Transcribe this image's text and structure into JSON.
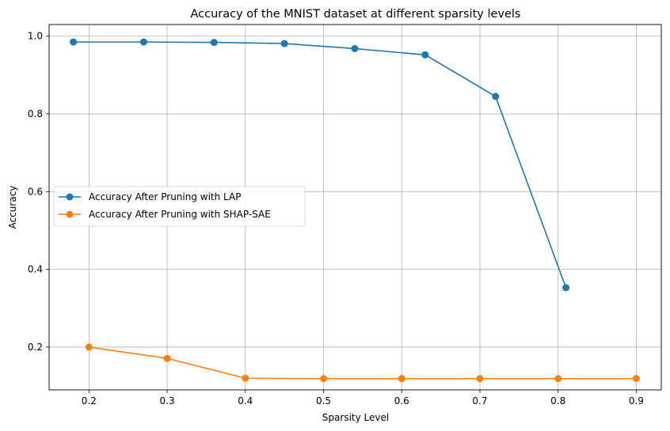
{
  "chart_data": {
    "type": "line",
    "title": "Accuracy of the MNIST dataset at different sparsity levels",
    "xlabel": "Sparsity Level",
    "ylabel": "Accuracy",
    "xlim": [
      0.149,
      0.932
    ],
    "ylim": [
      0.09,
      1.03
    ],
    "xticks": [
      "0.2",
      "0.3",
      "0.4",
      "0.5",
      "0.6",
      "0.7",
      "0.8",
      "0.9"
    ],
    "yticks": [
      "0.2",
      "0.4",
      "0.6",
      "0.8",
      "1.0"
    ],
    "grid": true,
    "legend_position": "center-left",
    "series": [
      {
        "name": "Accuracy After Pruning with LAP",
        "color": "#1f77b4",
        "x": [
          0.18,
          0.27,
          0.36,
          0.45,
          0.54,
          0.63,
          0.72,
          0.81
        ],
        "y": [
          0.985,
          0.985,
          0.984,
          0.981,
          0.968,
          0.952,
          0.845,
          0.353
        ]
      },
      {
        "name": "Accuracy After Pruning with SHAP-SAE",
        "color": "#ff7f0e",
        "x": [
          0.2,
          0.3,
          0.4,
          0.5,
          0.6,
          0.7,
          0.8,
          0.9
        ],
        "y": [
          0.2,
          0.171,
          0.12,
          0.119,
          0.119,
          0.119,
          0.119,
          0.119
        ]
      }
    ]
  }
}
